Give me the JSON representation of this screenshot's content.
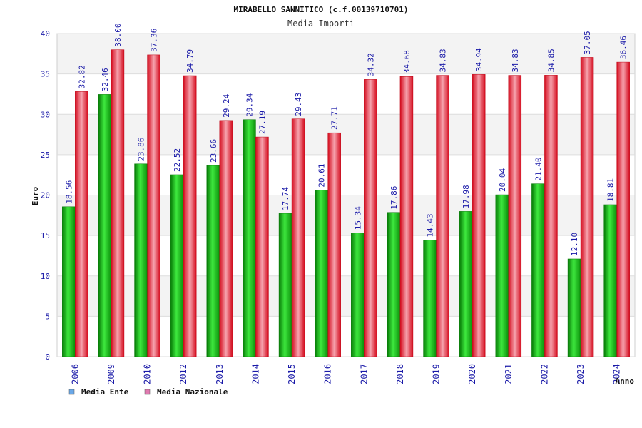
{
  "chart_data": {
    "type": "bar",
    "title": "MIRABELLO SANNITICO (c.f.00139710701)",
    "subtitle": "Media Importi",
    "xlabel": "Anno",
    "ylabel": "Euro",
    "ylim": [
      0,
      40
    ],
    "yticks": [
      "0",
      "5",
      "10",
      "15",
      "20",
      "25",
      "30",
      "35",
      "40"
    ],
    "grid": true,
    "legend_position": "bottom-left",
    "categories": [
      "2006",
      "2009",
      "2010",
      "2012",
      "2013",
      "2014",
      "2015",
      "2016",
      "2017",
      "2018",
      "2019",
      "2020",
      "2021",
      "2022",
      "2023",
      "2024"
    ],
    "series": [
      {
        "name": "Media Ente",
        "color": "#1fb51f",
        "legend_color": "#6aa8e8",
        "values": [
          18.56,
          32.46,
          23.86,
          22.52,
          23.66,
          29.34,
          17.74,
          20.61,
          15.34,
          17.86,
          14.43,
          17.98,
          20.04,
          21.4,
          12.1,
          18.81
        ],
        "labels": [
          "18.56",
          "32.46",
          "23.86",
          "22.52",
          "23.66",
          "29.34",
          "17.74",
          "20.61",
          "15.34",
          "17.86",
          "14.43",
          "17.98",
          "20.04",
          "21.40",
          "12.10",
          "18.81"
        ]
      },
      {
        "name": "Media Nazionale",
        "color": "#e8102a",
        "legend_color": "#e07ab0",
        "values": [
          32.82,
          38.0,
          37.36,
          34.79,
          29.24,
          27.19,
          29.43,
          27.71,
          34.32,
          34.68,
          34.83,
          34.94,
          34.83,
          34.85,
          37.05,
          36.46
        ],
        "labels": [
          "32.82",
          "38.00",
          "37.36",
          "34.79",
          "29.24",
          "27.19",
          "29.43",
          "27.71",
          "34.32",
          "34.68",
          "34.83",
          "34.94",
          "34.83",
          "34.85",
          "37.05",
          "36.46"
        ]
      }
    ]
  }
}
